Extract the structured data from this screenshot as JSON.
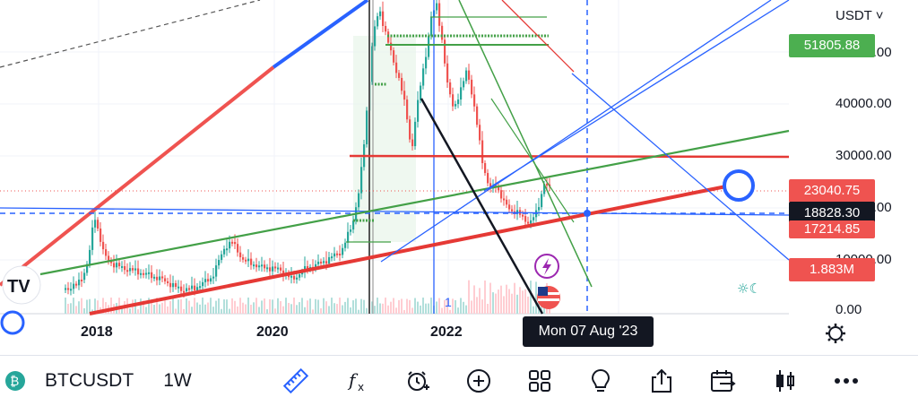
{
  "price_axis": {
    "currency": "USDT ˅",
    "labels": [
      "50000.00",
      "40000.00",
      "30000.00",
      "20000.00",
      "10000.00",
      "0.00"
    ]
  },
  "tags": {
    "top_green": "51805.88",
    "red_price": "23040.75",
    "dark_cursor": "18828.30",
    "low_red": "17214.85",
    "volume": "1.883M"
  },
  "x_axis": {
    "labels": [
      "2018",
      "2020",
      "2022"
    ]
  },
  "cursor_date": "Mon 07 Aug '23",
  "toolbar": {
    "symbol": "BTCUSDT",
    "interval": "1W"
  },
  "misc": {
    "marker_1": "1",
    "watermark": "BTCUSDT"
  },
  "colors": {
    "up": "#26a69a",
    "down": "#ef5350",
    "line_blue": "#2962ff",
    "line_green": "#43a047",
    "line_red": "#e53935",
    "dark": "#131722"
  }
}
